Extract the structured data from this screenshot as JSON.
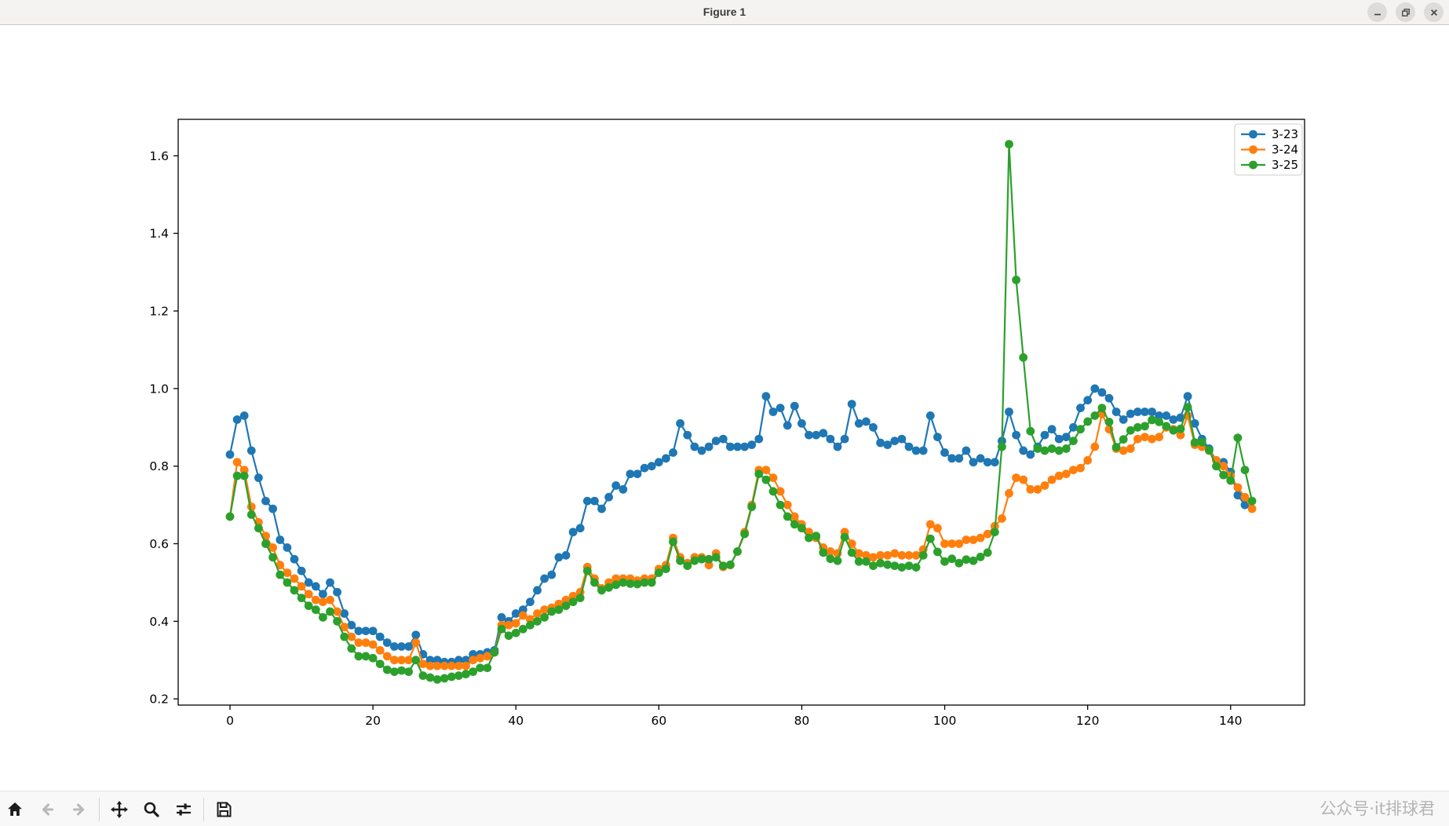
{
  "window": {
    "title": "Figure 1",
    "controls": {
      "minimize": "minimize",
      "restore": "restore",
      "close": "close"
    }
  },
  "toolbar": {
    "tools": [
      {
        "name": "home",
        "enabled": true
      },
      {
        "name": "back",
        "enabled": false
      },
      {
        "name": "forward",
        "enabled": false
      },
      {
        "name": "pan",
        "enabled": true
      },
      {
        "name": "zoom",
        "enabled": true
      },
      {
        "name": "subplots",
        "enabled": true
      },
      {
        "name": "save",
        "enabled": true
      }
    ],
    "watermark": "公众号·it排球君"
  },
  "chart_data": {
    "type": "line",
    "title": "",
    "xlabel": "",
    "ylabel": "",
    "grid": false,
    "legend_position": "upper right",
    "marker": "o",
    "x_start": 0,
    "x_step": 1,
    "xlim": [
      -7.25,
      150.35
    ],
    "ylim": [
      0.184,
      1.694
    ],
    "x_ticks": [
      0,
      20,
      40,
      60,
      80,
      100,
      120,
      140
    ],
    "y_ticks": [
      0.2,
      0.4,
      0.6,
      0.8,
      1.0,
      1.2,
      1.4,
      1.6
    ],
    "series": [
      {
        "name": "3-23",
        "color": "#1f77b4",
        "values": [
          0.83,
          0.92,
          0.93,
          0.84,
          0.77,
          0.71,
          0.69,
          0.61,
          0.59,
          0.56,
          0.53,
          0.5,
          0.49,
          0.47,
          0.5,
          0.475,
          0.42,
          0.39,
          0.375,
          0.375,
          0.375,
          0.36,
          0.345,
          0.335,
          0.335,
          0.335,
          0.365,
          0.315,
          0.3,
          0.3,
          0.295,
          0.295,
          0.3,
          0.3,
          0.315,
          0.315,
          0.32,
          0.325,
          0.41,
          0.4,
          0.42,
          0.43,
          0.45,
          0.48,
          0.51,
          0.52,
          0.565,
          0.57,
          0.63,
          0.64,
          0.71,
          0.71,
          0.69,
          0.72,
          0.75,
          0.74,
          0.78,
          0.78,
          0.795,
          0.8,
          0.81,
          0.82,
          0.835,
          0.91,
          0.88,
          0.85,
          0.84,
          0.85,
          0.865,
          0.87,
          0.85,
          0.85,
          0.85,
          0.855,
          0.87,
          0.98,
          0.94,
          0.95,
          0.905,
          0.955,
          0.91,
          0.88,
          0.88,
          0.885,
          0.87,
          0.85,
          0.87,
          0.96,
          0.91,
          0.915,
          0.9,
          0.86,
          0.855,
          0.865,
          0.87,
          0.85,
          0.84,
          0.84,
          0.93,
          0.875,
          0.835,
          0.82,
          0.82,
          0.84,
          0.81,
          0.82,
          0.81,
          0.81,
          0.865,
          0.94,
          0.88,
          0.84,
          0.83,
          0.85,
          0.88,
          0.895,
          0.87,
          0.875,
          0.9,
          0.95,
          0.97,
          1.0,
          0.99,
          0.975,
          0.94,
          0.92,
          0.935,
          0.94,
          0.94,
          0.94,
          0.93,
          0.93,
          0.92,
          0.925,
          0.98,
          0.91,
          0.87,
          0.845,
          0.815,
          0.81,
          0.785,
          0.725,
          0.7
        ]
      },
      {
        "name": "3-24",
        "color": "#ff7f0e",
        "values": [
          0.67,
          0.81,
          0.79,
          0.695,
          0.655,
          0.62,
          0.59,
          0.545,
          0.525,
          0.51,
          0.49,
          0.47,
          0.455,
          0.45,
          0.455,
          0.425,
          0.385,
          0.36,
          0.345,
          0.345,
          0.34,
          0.325,
          0.31,
          0.3,
          0.3,
          0.3,
          0.345,
          0.29,
          0.285,
          0.285,
          0.285,
          0.285,
          0.285,
          0.285,
          0.3,
          0.305,
          0.31,
          0.32,
          0.39,
          0.39,
          0.395,
          0.415,
          0.405,
          0.42,
          0.43,
          0.435,
          0.445,
          0.455,
          0.465,
          0.475,
          0.54,
          0.51,
          0.485,
          0.5,
          0.51,
          0.51,
          0.51,
          0.505,
          0.51,
          0.51,
          0.535,
          0.545,
          0.615,
          0.565,
          0.55,
          0.565,
          0.565,
          0.545,
          0.575,
          0.54,
          0.545,
          0.58,
          0.63,
          0.7,
          0.79,
          0.79,
          0.77,
          0.735,
          0.7,
          0.67,
          0.65,
          0.63,
          0.615,
          0.59,
          0.58,
          0.575,
          0.63,
          0.6,
          0.575,
          0.57,
          0.565,
          0.57,
          0.57,
          0.575,
          0.57,
          0.57,
          0.57,
          0.585,
          0.65,
          0.64,
          0.6,
          0.6,
          0.6,
          0.61,
          0.61,
          0.615,
          0.625,
          0.645,
          0.665,
          0.73,
          0.77,
          0.765,
          0.74,
          0.74,
          0.75,
          0.765,
          0.775,
          0.78,
          0.79,
          0.795,
          0.815,
          0.85,
          0.935,
          0.895,
          0.845,
          0.84,
          0.845,
          0.87,
          0.875,
          0.87,
          0.875,
          0.9,
          0.895,
          0.88,
          0.93,
          0.855,
          0.85,
          0.84,
          0.815,
          0.8,
          0.775,
          0.745,
          0.72,
          0.69
        ]
      },
      {
        "name": "3-25",
        "color": "#2ca02c",
        "values": [
          0.67,
          0.775,
          0.775,
          0.675,
          0.64,
          0.6,
          0.565,
          0.52,
          0.5,
          0.48,
          0.46,
          0.44,
          0.43,
          0.41,
          0.425,
          0.4,
          0.36,
          0.33,
          0.31,
          0.31,
          0.305,
          0.29,
          0.275,
          0.27,
          0.273,
          0.27,
          0.3,
          0.26,
          0.255,
          0.25,
          0.253,
          0.257,
          0.26,
          0.264,
          0.27,
          0.28,
          0.28,
          0.32,
          0.38,
          0.363,
          0.37,
          0.38,
          0.39,
          0.4,
          0.41,
          0.425,
          0.43,
          0.44,
          0.45,
          0.46,
          0.53,
          0.5,
          0.48,
          0.487,
          0.494,
          0.5,
          0.497,
          0.496,
          0.5,
          0.5,
          0.525,
          0.535,
          0.605,
          0.556,
          0.543,
          0.556,
          0.56,
          0.56,
          0.565,
          0.543,
          0.546,
          0.58,
          0.625,
          0.695,
          0.78,
          0.765,
          0.735,
          0.7,
          0.67,
          0.65,
          0.64,
          0.615,
          0.62,
          0.577,
          0.561,
          0.556,
          0.617,
          0.577,
          0.554,
          0.554,
          0.543,
          0.55,
          0.546,
          0.543,
          0.539,
          0.543,
          0.539,
          0.57,
          0.613,
          0.579,
          0.554,
          0.561,
          0.55,
          0.559,
          0.556,
          0.566,
          0.577,
          0.63,
          0.85,
          1.63,
          1.28,
          1.08,
          0.89,
          0.845,
          0.84,
          0.845,
          0.84,
          0.845,
          0.865,
          0.895,
          0.915,
          0.93,
          0.95,
          0.914,
          0.849,
          0.869,
          0.892,
          0.9,
          0.903,
          0.919,
          0.914,
          0.903,
          0.892,
          0.896,
          0.952,
          0.861,
          0.862,
          0.841,
          0.8,
          0.777,
          0.763,
          0.873,
          0.79,
          0.71
        ]
      }
    ]
  }
}
